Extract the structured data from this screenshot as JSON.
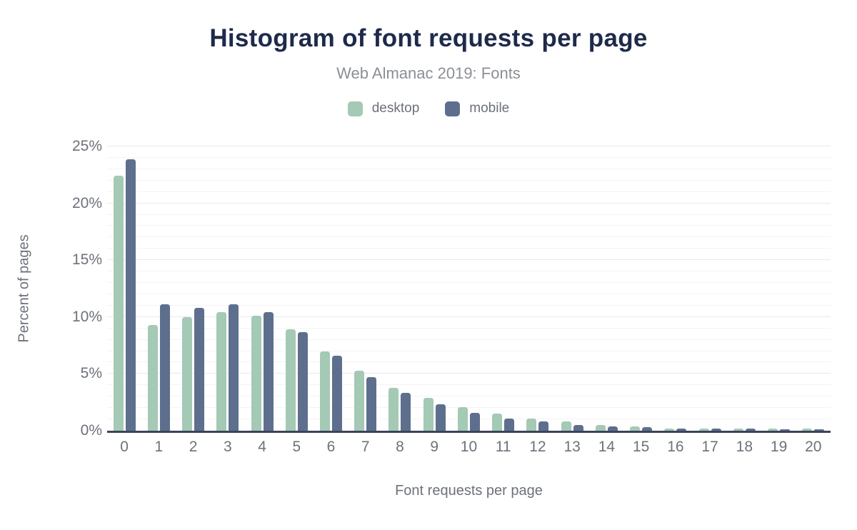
{
  "title": "Histogram of font requests per page",
  "subtitle": "Web Almanac 2019: Fonts",
  "colors": {
    "title": "#1e2a4a",
    "subtitle": "#8b8f96",
    "axis_labels": "#6d717a",
    "axis_line": "#3a445a",
    "grid_minor": "#f4f4f5",
    "grid_major": "#e9e9eb",
    "desktop": "#a4c9b5",
    "mobile": "#5d6f8d"
  },
  "chart_data": {
    "type": "bar",
    "title": "Histogram of font requests per page",
    "subtitle": "Web Almanac 2019: Fonts",
    "xlabel": "Font requests per page",
    "ylabel": "Percent of pages",
    "categories": [
      "0",
      "1",
      "2",
      "3",
      "4",
      "5",
      "6",
      "7",
      "8",
      "9",
      "10",
      "11",
      "12",
      "13",
      "14",
      "15",
      "16",
      "17",
      "18",
      "19",
      "20"
    ],
    "series": [
      {
        "name": "desktop",
        "color": "#a4c9b5",
        "values": [
          22.4,
          9.3,
          10.0,
          10.4,
          10.1,
          8.9,
          7.0,
          5.3,
          3.8,
          2.9,
          2.1,
          1.5,
          1.1,
          0.8,
          0.5,
          0.4,
          0.2,
          0.2,
          0.2,
          0.2,
          0.2
        ]
      },
      {
        "name": "mobile",
        "color": "#5d6f8d",
        "values": [
          23.9,
          11.1,
          10.8,
          11.1,
          10.4,
          8.7,
          6.6,
          4.7,
          3.3,
          2.3,
          1.6,
          1.1,
          0.8,
          0.5,
          0.4,
          0.3,
          0.2,
          0.2,
          0.2,
          0.1,
          0.1
        ]
      }
    ],
    "ylim": [
      0,
      25
    ],
    "y_ticks": [
      "0%",
      "5%",
      "10%",
      "15%",
      "20%",
      "25%"
    ],
    "y_tick_step": 5,
    "grid": "horizontal: minor line every 1%, major line every 5%",
    "legend_position": "top"
  }
}
